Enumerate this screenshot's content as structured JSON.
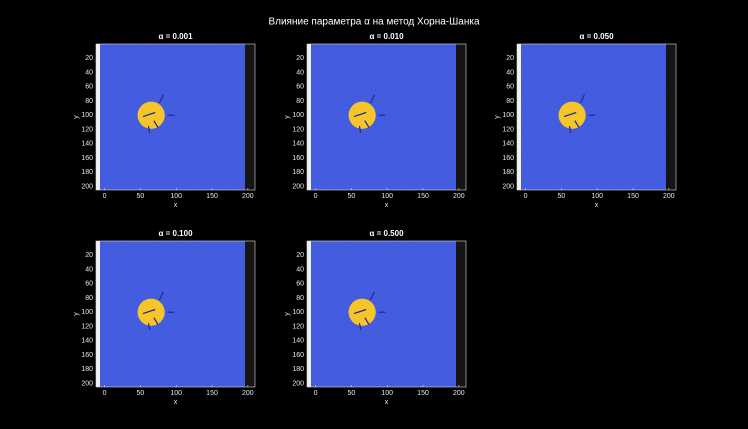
{
  "title": "Влияние параметра α на метод Хорна-Шанка",
  "chart_data": [
    {
      "type": "image",
      "title": "α = 0.001",
      "xlabel": "x",
      "ylabel": "y",
      "xlim": [
        -12,
        210
      ],
      "ylim": [
        0,
        205
      ],
      "y_reversed": true,
      "xticks": [
        0,
        50,
        100,
        150,
        200
      ],
      "yticks": [
        20,
        40,
        60,
        80,
        100,
        120,
        140,
        160,
        180,
        200
      ],
      "disk": {
        "x": 65,
        "y": 100,
        "r": 19
      }
    },
    {
      "type": "image",
      "title": "α = 0.010",
      "xlabel": "x",
      "ylabel": "y",
      "xlim": [
        -12,
        210
      ],
      "ylim": [
        0,
        205
      ],
      "y_reversed": true,
      "xticks": [
        0,
        50,
        100,
        150,
        200
      ],
      "yticks": [
        20,
        40,
        60,
        80,
        100,
        120,
        140,
        160,
        180,
        200
      ],
      "disk": {
        "x": 65,
        "y": 100,
        "r": 19
      }
    },
    {
      "type": "image",
      "title": "α = 0.050",
      "xlabel": "x",
      "ylabel": "y",
      "xlim": [
        -12,
        210
      ],
      "ylim": [
        0,
        205
      ],
      "y_reversed": true,
      "xticks": [
        0,
        50,
        100,
        150,
        200
      ],
      "yticks": [
        20,
        40,
        60,
        80,
        100,
        120,
        140,
        160,
        180,
        200
      ],
      "disk": {
        "x": 65,
        "y": 100,
        "r": 19
      }
    },
    {
      "type": "image",
      "title": "α = 0.100",
      "xlabel": "x",
      "ylabel": "y",
      "xlim": [
        -12,
        210
      ],
      "ylim": [
        0,
        205
      ],
      "y_reversed": true,
      "xticks": [
        0,
        50,
        100,
        150,
        200
      ],
      "yticks": [
        20,
        40,
        60,
        80,
        100,
        120,
        140,
        160,
        180,
        200
      ],
      "disk": {
        "x": 65,
        "y": 100,
        "r": 19
      }
    },
    {
      "type": "image",
      "title": "α = 0.500",
      "xlabel": "x",
      "ylabel": "y",
      "xlim": [
        -12,
        210
      ],
      "ylim": [
        0,
        205
      ],
      "y_reversed": true,
      "xticks": [
        0,
        50,
        100,
        150,
        200
      ],
      "yticks": [
        20,
        40,
        60,
        80,
        100,
        120,
        140,
        160,
        180,
        200
      ],
      "disk": {
        "x": 65,
        "y": 100,
        "r": 19
      }
    }
  ]
}
